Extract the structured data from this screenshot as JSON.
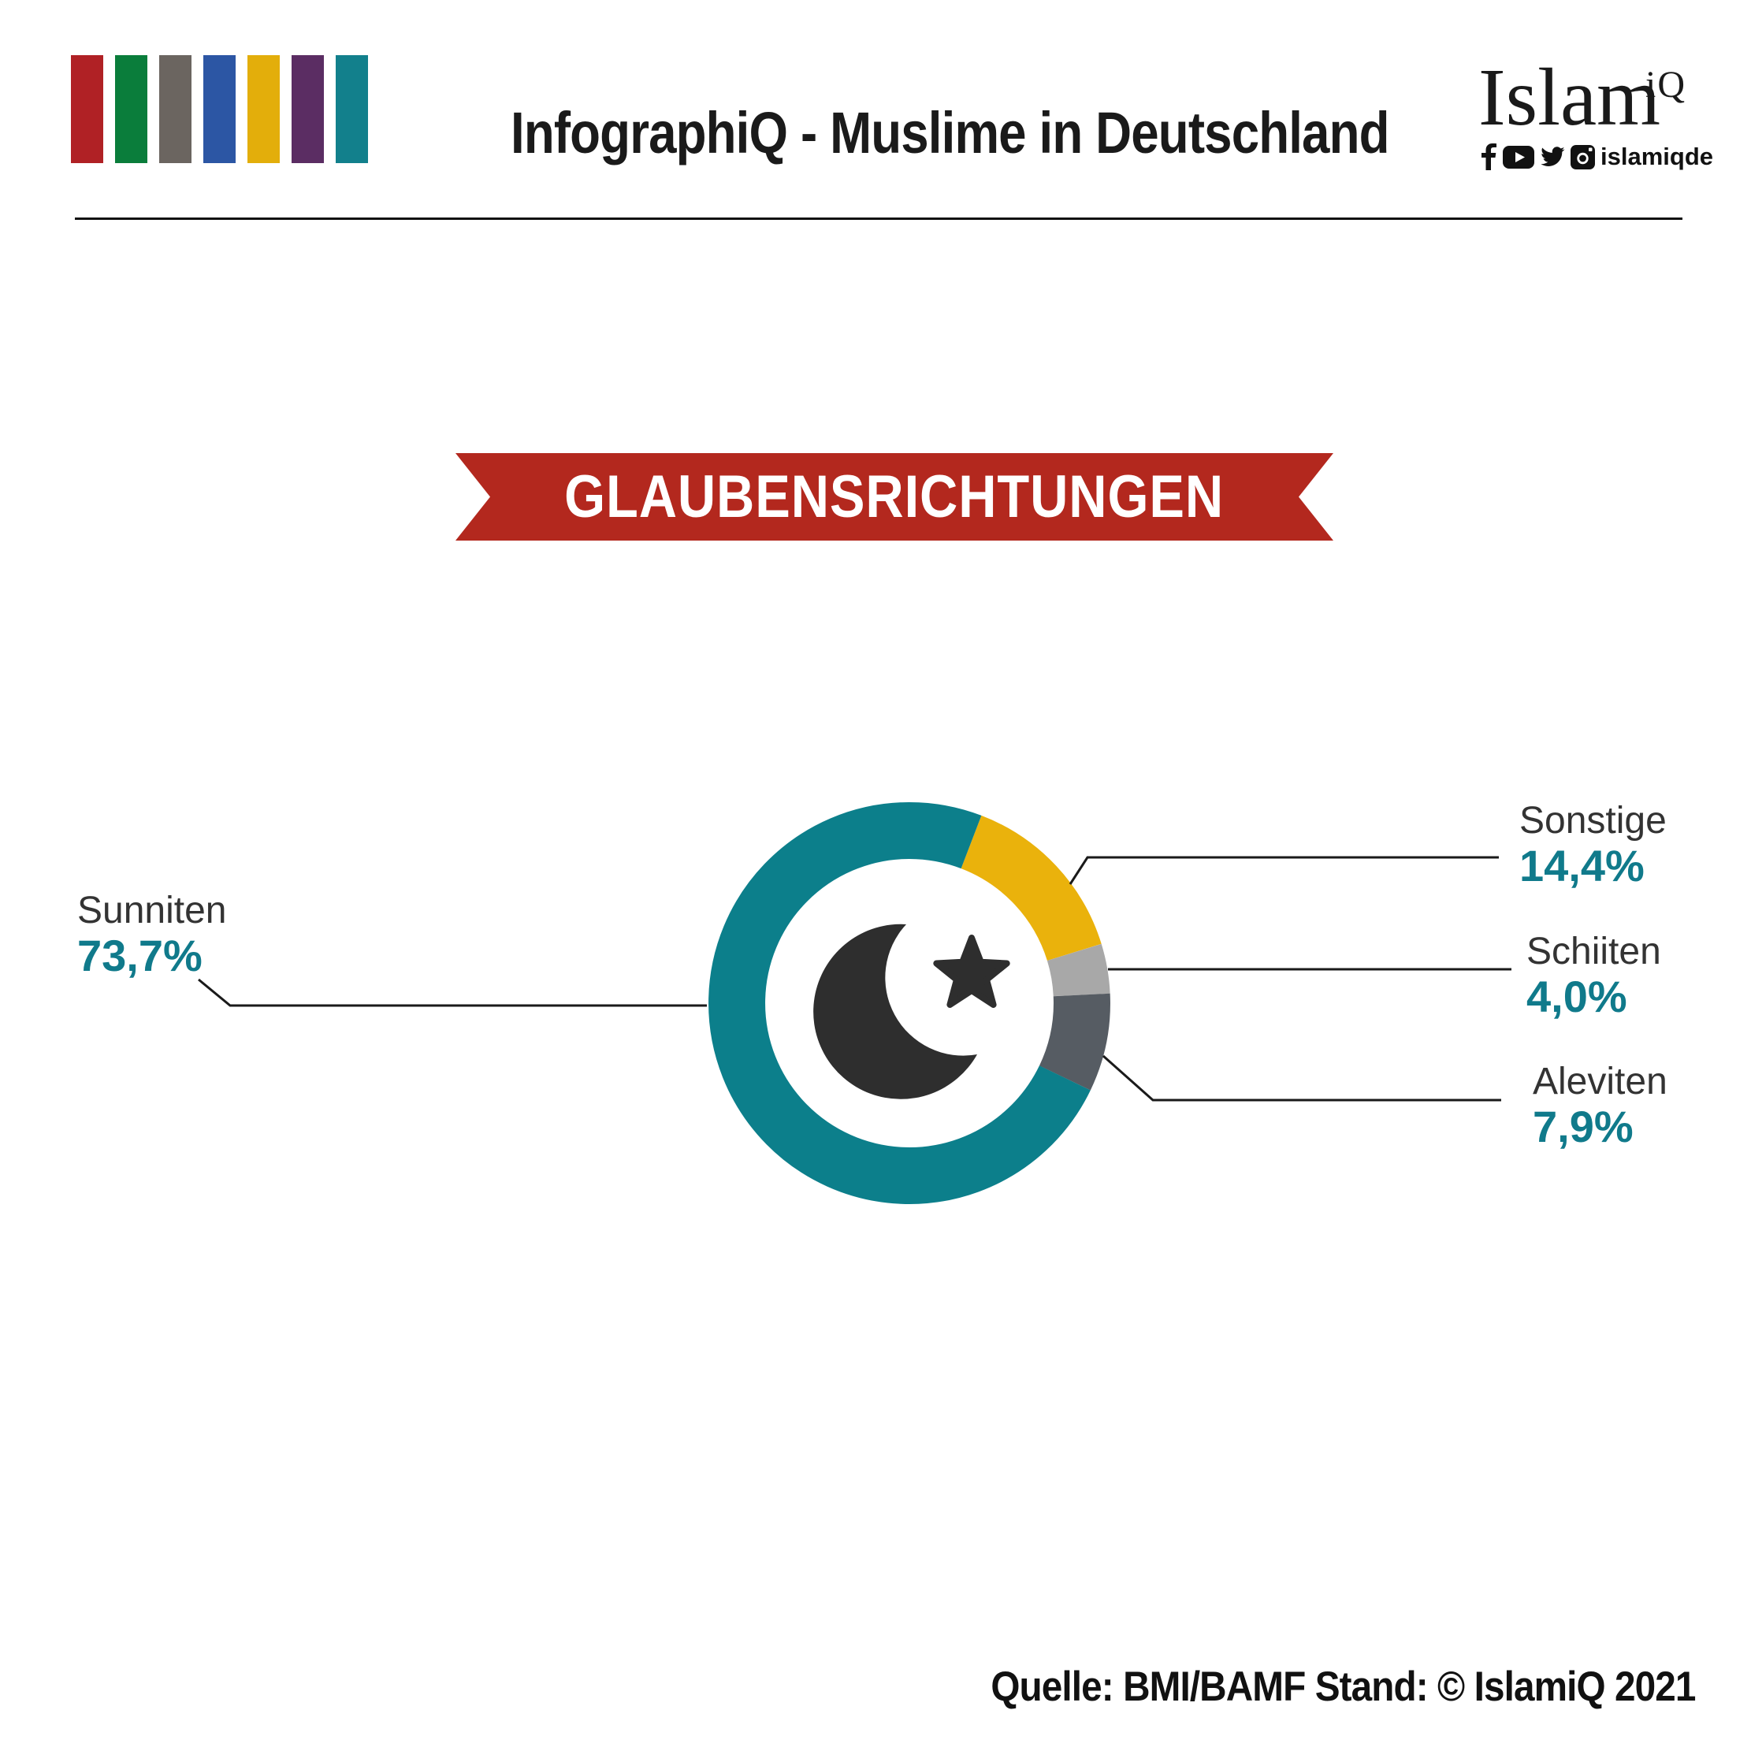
{
  "header": {
    "title": "InfographiQ - Muslime in Deutschland",
    "brand_bar_colors": [
      "#B02125",
      "#0A7D3B",
      "#6B6560",
      "#2C56A4",
      "#E3AE0B",
      "#5B2D63",
      "#12808C"
    ],
    "logo": {
      "wordmark": "Islam",
      "superscript": "iQ",
      "social_handle": "islamiqde"
    }
  },
  "banner": {
    "text": "GLAUBENSRICHTUNGEN",
    "color": "#B3281E"
  },
  "chart_data": {
    "type": "pie",
    "subtype": "donut",
    "title": "Glaubensrichtungen",
    "value_unit": "percent",
    "legend_position": "callouts",
    "start_angle_deg": 21,
    "center_icon": "crescent-and-star",
    "segments": [
      {
        "label": "Sonstige",
        "value": 14.4,
        "display": "14,4%",
        "color": "#EAB20C"
      },
      {
        "label": "Schiiten",
        "value": 4.0,
        "display": "4,0%",
        "color": "#A8A8A8"
      },
      {
        "label": "Aleviten",
        "value": 7.9,
        "display": "7,9%",
        "color": "#565C63"
      },
      {
        "label": "Sunniten",
        "value": 73.7,
        "display": "73,7%",
        "color": "#0C7F8B"
      }
    ]
  },
  "footer": {
    "source": "Quelle: BMI/BAMF Stand: © IslamiQ 2021"
  }
}
